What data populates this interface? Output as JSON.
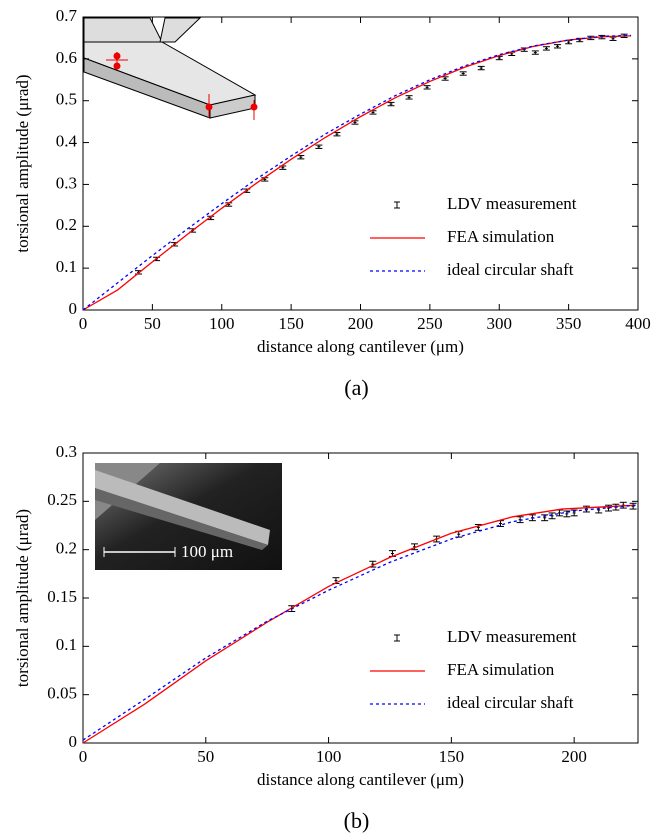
{
  "chart_data": [
    {
      "type": "line",
      "label": "(a)",
      "xlabel": "distance along cantilever (μm)",
      "ylabel": "torsional amplitude (μrad)",
      "xlim": [
        0,
        400
      ],
      "xticks": [
        0,
        50,
        100,
        150,
        200,
        250,
        300,
        350,
        400
      ],
      "ylim": [
        0,
        0.7
      ],
      "yticks": [
        0,
        0.1,
        0.2,
        0.3,
        0.4,
        0.5,
        0.6,
        0.7
      ],
      "legend": "lower right",
      "series": [
        {
          "name": "LDV measurement",
          "color": "#000000",
          "style": "errorbar",
          "x": [
            40,
            53,
            66,
            79,
            92,
            105,
            118,
            131,
            144,
            157,
            170,
            183,
            196,
            209,
            222,
            235,
            248,
            261,
            274,
            287,
            300,
            309,
            318,
            326,
            334,
            342,
            350,
            358,
            366,
            374,
            382,
            390
          ],
          "values": [
            0.09,
            0.122,
            0.157,
            0.19,
            0.22,
            0.252,
            0.285,
            0.312,
            0.34,
            0.365,
            0.39,
            0.42,
            0.448,
            0.472,
            0.492,
            0.508,
            0.532,
            0.553,
            0.565,
            0.578,
            0.602,
            0.612,
            0.622,
            0.615,
            0.625,
            0.63,
            0.64,
            0.645,
            0.65,
            0.652,
            0.648,
            0.655
          ],
          "errors": [
            0.004,
            0.004,
            0.004,
            0.004,
            0.004,
            0.004,
            0.004,
            0.004,
            0.004,
            0.004,
            0.004,
            0.004,
            0.004,
            0.004,
            0.004,
            0.004,
            0.004,
            0.004,
            0.004,
            0.004,
            0.004,
            0.004,
            0.004,
            0.004,
            0.004,
            0.004,
            0.004,
            0.004,
            0.004,
            0.004,
            0.004,
            0.004
          ]
        },
        {
          "name": "FEA simulation",
          "color": "#ff0000",
          "style": "solid",
          "x": [
            0,
            25,
            50,
            75,
            100,
            125,
            150,
            175,
            200,
            225,
            250,
            275,
            300,
            325,
            350,
            375,
            395
          ],
          "values": [
            0,
            0.048,
            0.115,
            0.18,
            0.243,
            0.303,
            0.36,
            0.413,
            0.462,
            0.507,
            0.546,
            0.58,
            0.608,
            0.63,
            0.645,
            0.653,
            0.655
          ]
        },
        {
          "name": "ideal circular shaft",
          "color": "#0000ff",
          "style": "dotted",
          "x": [
            0,
            25,
            50,
            75,
            100,
            125,
            150,
            175,
            200,
            225,
            250,
            275,
            300,
            325,
            350,
            375,
            395
          ],
          "values": [
            0,
            0.065,
            0.13,
            0.193,
            0.254,
            0.313,
            0.368,
            0.421,
            0.468,
            0.512,
            0.55,
            0.583,
            0.61,
            0.631,
            0.645,
            0.654,
            0.656
          ]
        }
      ]
    },
    {
      "type": "line",
      "label": "(b)",
      "xlabel": "distance along cantilever (μm)",
      "ylabel": "torsional amplitude (μrad)",
      "inset_label": "100 μm",
      "xlim": [
        0,
        226
      ],
      "xticks": [
        0,
        50,
        100,
        150,
        200
      ],
      "ylim": [
        0,
        0.3
      ],
      "yticks": [
        0,
        0.05,
        0.1,
        0.15,
        0.2,
        0.25,
        0.3
      ],
      "legend": "lower right",
      "series": [
        {
          "name": "LDV measurement",
          "color": "#000000",
          "style": "errorbar",
          "x": [
            85,
            103,
            118,
            126,
            135,
            144,
            153,
            161,
            170,
            178,
            183,
            188,
            191,
            194,
            197,
            200,
            205,
            210,
            214,
            217,
            220,
            224
          ],
          "values": [
            0.139,
            0.168,
            0.185,
            0.196,
            0.203,
            0.211,
            0.216,
            0.223,
            0.227,
            0.231,
            0.233,
            0.233,
            0.235,
            0.238,
            0.237,
            0.238,
            0.242,
            0.241,
            0.243,
            0.244,
            0.246,
            0.245
          ],
          "errors": [
            0.003,
            0.003,
            0.003,
            0.003,
            0.003,
            0.003,
            0.003,
            0.003,
            0.003,
            0.003,
            0.003,
            0.003,
            0.003,
            0.003,
            0.003,
            0.003,
            0.003,
            0.003,
            0.003,
            0.003,
            0.003,
            0.003
          ]
        },
        {
          "name": "FEA simulation",
          "color": "#ff0000",
          "style": "solid",
          "x": [
            0,
            25,
            50,
            75,
            100,
            125,
            150,
            175,
            195,
            225
          ],
          "values": [
            0,
            0.04,
            0.085,
            0.125,
            0.162,
            0.192,
            0.217,
            0.234,
            0.242,
            0.246
          ]
        },
        {
          "name": "ideal circular shaft",
          "color": "#0000ff",
          "style": "dotted",
          "x": [
            0,
            25,
            50,
            75,
            100,
            125,
            150,
            175,
            200,
            225
          ],
          "values": [
            0.003,
            0.045,
            0.088,
            0.126,
            0.158,
            0.187,
            0.211,
            0.229,
            0.24,
            0.246
          ]
        }
      ]
    }
  ]
}
